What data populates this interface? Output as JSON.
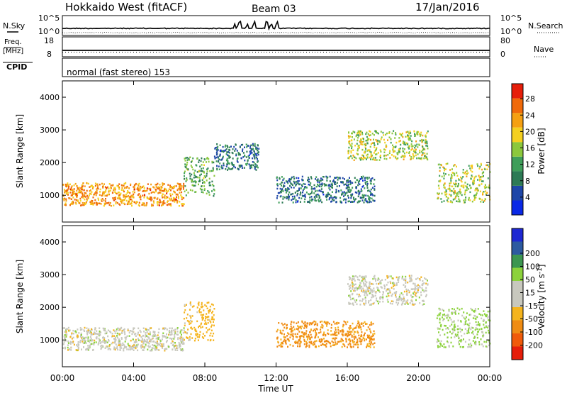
{
  "header": {
    "station": "Hokkaido West (fitACF)",
    "beam": "Beam 03",
    "date": "17/Jan/2016"
  },
  "noise_panel": {
    "left_label": "N.Sky",
    "right_label": "N.Search",
    "left_top_tick": "10^5",
    "left_bottom_tick": "10^0",
    "right_top_tick": "10^5",
    "right_bottom_tick": "10^0"
  },
  "freq_panel": {
    "left_label_line1": "Freq.",
    "left_label_line2": "[MHz]",
    "right_label": "Nave",
    "left_top_tick": "18",
    "left_bottom_tick": "8",
    "right_top_tick": "80",
    "right_bottom_tick": "0"
  },
  "cpid_panel": {
    "label": "CPID",
    "text": "normal (fast stereo) 153"
  },
  "x_axis": {
    "label": "Time UT",
    "ticks": [
      "00:00",
      "04:00",
      "08:00",
      "12:00",
      "16:00",
      "20:00",
      "00:00"
    ]
  },
  "colors": {
    "power_scale": [
      "#0a28e6",
      "#1e46a8",
      "#2d7a55",
      "#3f9e5a",
      "#8cc83c",
      "#f5d020",
      "#f5a012",
      "#f06a0a",
      "#e61e0a"
    ],
    "velocity_scale": [
      "#e61e0a",
      "#f05a0a",
      "#f08c14",
      "#f5b41e",
      "#c8c8be",
      "#c8c8be",
      "#8cd23c",
      "#3c9650",
      "#2d5aa0",
      "#1e28d2"
    ]
  },
  "chart_data": [
    {
      "type": "heatmap",
      "title": "",
      "xlabel": "Time UT",
      "ylabel": "Slant Range [km]",
      "xlim": [
        "00:00",
        "24:00"
      ],
      "ylim": [
        180,
        4500
      ],
      "x_ticks": [
        "00:00",
        "04:00",
        "08:00",
        "12:00",
        "16:00",
        "20:00",
        "00:00"
      ],
      "y_ticks": [
        1000,
        2000,
        3000,
        4000
      ],
      "colorbar": {
        "label": "Power [dB]",
        "tick_labels": [
          "4",
          "8",
          "12",
          "16",
          "20",
          "24",
          "28"
        ],
        "tick_values": [
          4,
          8,
          12,
          16,
          20,
          24,
          28
        ],
        "range": [
          0,
          30
        ]
      },
      "regions": [
        {
          "t0": 0.0,
          "t1": 6.8,
          "r_lo": 700,
          "r_hi": 1400,
          "value": 22
        },
        {
          "t0": 6.8,
          "t1": 8.5,
          "r_lo": 1000,
          "r_hi": 2200,
          "value": 12
        },
        {
          "t0": 8.5,
          "t1": 11.0,
          "r_lo": 1800,
          "r_hi": 2600,
          "value": 8
        },
        {
          "t0": 12.0,
          "t1": 17.5,
          "r_lo": 800,
          "r_hi": 1600,
          "value": 8
        },
        {
          "t0": 16.0,
          "t1": 20.5,
          "r_lo": 2100,
          "r_hi": 3000,
          "value": 16
        },
        {
          "t0": 21.0,
          "t1": 24.0,
          "r_lo": 800,
          "r_hi": 2000,
          "value": 16
        }
      ]
    },
    {
      "type": "heatmap",
      "title": "",
      "xlabel": "Time UT",
      "ylabel": "Slant Range [km]",
      "xlim": [
        "00:00",
        "24:00"
      ],
      "ylim": [
        180,
        4500
      ],
      "x_ticks": [
        "00:00",
        "04:00",
        "08:00",
        "12:00",
        "16:00",
        "20:00",
        "00:00"
      ],
      "y_ticks": [
        1000,
        2000,
        3000,
        4000
      ],
      "colorbar": {
        "label": "Velocity [m s-1]",
        "tick_labels": [
          "-200",
          "-100",
          "-50",
          "-15",
          "15",
          "50",
          "100",
          "200"
        ],
        "tick_values": [
          -200,
          -100,
          -50,
          -15,
          15,
          50,
          100,
          200
        ],
        "range": [
          -250,
          250
        ]
      },
      "regions": [
        {
          "t0": 0.0,
          "t1": 6.8,
          "r_lo": 700,
          "r_hi": 1400,
          "value": 0
        },
        {
          "t0": 6.8,
          "t1": 8.5,
          "r_lo": 1000,
          "r_hi": 2200,
          "value": -30
        },
        {
          "t0": 12.0,
          "t1": 17.5,
          "r_lo": 800,
          "r_hi": 1600,
          "value": -60
        },
        {
          "t0": 16.0,
          "t1": 20.5,
          "r_lo": 2100,
          "r_hi": 3000,
          "value": 0
        },
        {
          "t0": 21.0,
          "t1": 24.0,
          "r_lo": 800,
          "r_hi": 2000,
          "value": 20
        }
      ]
    }
  ]
}
